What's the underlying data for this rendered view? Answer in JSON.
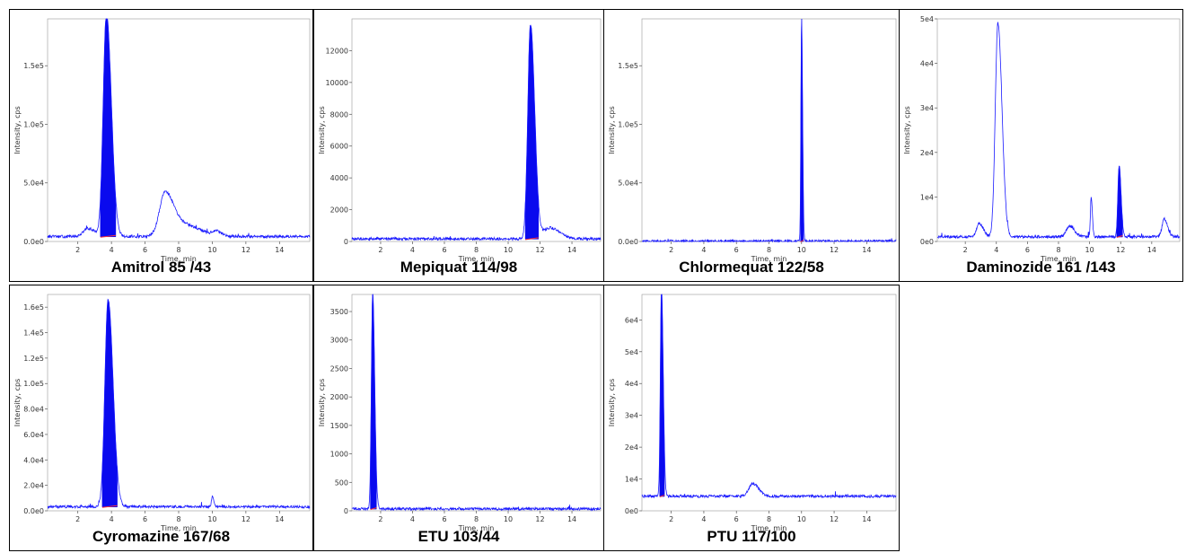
{
  "colors": {
    "trace": "#1a1aff",
    "fill": "#0a0aee",
    "baseline": "#ff3333",
    "frame": "#000000"
  },
  "chart_data": [
    {
      "type": "line",
      "caption": "Amitrol 85 /43",
      "xlabel": "Time, min",
      "ylabel": "Intensity, cps",
      "xlim": [
        0.2,
        15.8
      ],
      "ylim": [
        0,
        190000
      ],
      "xticks": [
        "2",
        "4",
        "6",
        "8",
        "10",
        "12",
        "14"
      ],
      "yticks": [
        {
          "v": 0,
          "label": "0.0e0"
        },
        {
          "v": 50000,
          "label": "5.0e4"
        },
        {
          "v": 100000,
          "label": "1.0e5"
        },
        {
          "v": 150000,
          "label": "1.5e5"
        }
      ],
      "baseline_level": 4000,
      "peaks": [
        {
          "rt": 3.7,
          "height": 190000,
          "width": 0.28,
          "filled": true
        },
        {
          "rt": 7.2,
          "height": 38000,
          "width": 0.5,
          "filled": false
        },
        {
          "rt": 8.5,
          "height": 9000,
          "width": 0.8,
          "filled": false
        },
        {
          "rt": 10.2,
          "height": 4000,
          "width": 0.3,
          "filled": false
        },
        {
          "rt": 2.6,
          "height": 7000,
          "width": 0.4,
          "filled": false
        }
      ]
    },
    {
      "type": "line",
      "caption": "Mepiquat 114/98",
      "xlabel": "Time, min",
      "ylabel": "Intensity, cps",
      "xlim": [
        0.2,
        15.8
      ],
      "ylim": [
        0,
        14000
      ],
      "xticks": [
        "2",
        "4",
        "6",
        "8",
        "10",
        "12",
        "14"
      ],
      "yticks": [
        {
          "v": 0,
          "label": "0"
        },
        {
          "v": 2000,
          "label": "2000"
        },
        {
          "v": 4000,
          "label": "4000"
        },
        {
          "v": 6000,
          "label": "6000"
        },
        {
          "v": 8000,
          "label": "8000"
        },
        {
          "v": 10000,
          "label": "10000"
        },
        {
          "v": 12000,
          "label": "12000"
        }
      ],
      "baseline_level": 150,
      "peaks": [
        {
          "rt": 11.4,
          "height": 13500,
          "width": 0.25,
          "filled": true
        },
        {
          "rt": 12.6,
          "height": 700,
          "width": 0.6,
          "filled": false
        }
      ]
    },
    {
      "type": "line",
      "caption": "Chlormequat 122/58",
      "xlabel": "Time, min",
      "ylabel": "Intensity, cps",
      "xlim": [
        0.2,
        15.8
      ],
      "ylim": [
        0,
        190000
      ],
      "xticks": [
        "2",
        "4",
        "6",
        "8",
        "10",
        "12",
        "14"
      ],
      "yticks": [
        {
          "v": 0,
          "label": "0.0e0"
        },
        {
          "v": 50000,
          "label": "5.0e4"
        },
        {
          "v": 100000,
          "label": "1.0e5"
        },
        {
          "v": 150000,
          "label": "1.5e5"
        }
      ],
      "baseline_level": 0,
      "peaks": [
        {
          "rt": 10.0,
          "height": 190000,
          "width": 0.06,
          "filled": true
        }
      ]
    },
    {
      "type": "line",
      "caption": "Daminozide 161 /143",
      "xlabel": "Time, min",
      "ylabel": "Intensity, cps",
      "xlim": [
        0.2,
        15.8
      ],
      "ylim": [
        0,
        50000
      ],
      "xticks": [
        "2",
        "4",
        "6",
        "8",
        "10",
        "12",
        "14"
      ],
      "yticks": [
        {
          "v": 0,
          "label": "0e0"
        },
        {
          "v": 10000,
          "label": "1e4"
        },
        {
          "v": 20000,
          "label": "2e4"
        },
        {
          "v": 30000,
          "label": "3e4"
        },
        {
          "v": 40000,
          "label": "4e4"
        },
        {
          "v": 50000,
          "label": "5e4"
        }
      ],
      "baseline_level": 1000,
      "peaks": [
        {
          "rt": 4.1,
          "height": 48000,
          "width": 0.25,
          "filled": false
        },
        {
          "rt": 2.9,
          "height": 3000,
          "width": 0.25,
          "filled": false
        },
        {
          "rt": 8.7,
          "height": 2500,
          "width": 0.3,
          "filled": false
        },
        {
          "rt": 10.1,
          "height": 9000,
          "width": 0.07,
          "filled": false
        },
        {
          "rt": 11.9,
          "height": 16000,
          "width": 0.12,
          "filled": true
        },
        {
          "rt": 14.8,
          "height": 4000,
          "width": 0.2,
          "filled": false
        }
      ]
    },
    {
      "type": "line",
      "caption": "Cyromazine 167/68",
      "xlabel": "Time, min",
      "ylabel": "Intensity, cps",
      "xlim": [
        0.2,
        15.8
      ],
      "ylim": [
        0,
        170000
      ],
      "xticks": [
        "2",
        "4",
        "6",
        "8",
        "10",
        "12",
        "14"
      ],
      "yticks": [
        {
          "v": 0,
          "label": "0.0e0"
        },
        {
          "v": 20000,
          "label": "2.0e4"
        },
        {
          "v": 40000,
          "label": "4.0e4"
        },
        {
          "v": 60000,
          "label": "6.0e4"
        },
        {
          "v": 80000,
          "label": "8.0e4"
        },
        {
          "v": 100000,
          "label": "1.0e5"
        },
        {
          "v": 120000,
          "label": "1.2e5"
        },
        {
          "v": 140000,
          "label": "1.4e5"
        },
        {
          "v": 160000,
          "label": "1.6e5"
        }
      ],
      "baseline_level": 3000,
      "peaks": [
        {
          "rt": 3.8,
          "height": 163000,
          "width": 0.28,
          "filled": true
        },
        {
          "rt": 10.0,
          "height": 8000,
          "width": 0.08,
          "filled": false
        }
      ]
    },
    {
      "type": "line",
      "caption": "ETU 103/44",
      "xlabel": "Time, min",
      "ylabel": "Intensity, cps",
      "xlim": [
        0.2,
        15.8
      ],
      "ylim": [
        0,
        3800
      ],
      "xticks": [
        "2",
        "4",
        "6",
        "8",
        "10",
        "12",
        "14"
      ],
      "yticks": [
        {
          "v": 0,
          "label": "0"
        },
        {
          "v": 500,
          "label": "500"
        },
        {
          "v": 1000,
          "label": "1000"
        },
        {
          "v": 1500,
          "label": "1500"
        },
        {
          "v": 2000,
          "label": "2000"
        },
        {
          "v": 2500,
          "label": "2500"
        },
        {
          "v": 3000,
          "label": "3000"
        },
        {
          "v": 3500,
          "label": "3500"
        }
      ],
      "baseline_level": 30,
      "peaks": [
        {
          "rt": 1.5,
          "height": 3800,
          "width": 0.12,
          "filled": true
        }
      ]
    },
    {
      "type": "line",
      "caption": "PTU 117/100",
      "xlabel": "Time, min",
      "ylabel": "Intensity, cps",
      "xlim": [
        0.2,
        15.8
      ],
      "ylim": [
        0,
        68000
      ],
      "xticks": [
        "2",
        "4",
        "6",
        "8",
        "10",
        "12",
        "14"
      ],
      "yticks": [
        {
          "v": 0,
          "label": "0e0"
        },
        {
          "v": 10000,
          "label": "1e4"
        },
        {
          "v": 20000,
          "label": "2e4"
        },
        {
          "v": 30000,
          "label": "3e4"
        },
        {
          "v": 40000,
          "label": "4e4"
        },
        {
          "v": 50000,
          "label": "5e4"
        },
        {
          "v": 60000,
          "label": "6e4"
        }
      ],
      "baseline_level": 4500,
      "peaks": [
        {
          "rt": 1.4,
          "height": 66000,
          "width": 0.1,
          "filled": true
        },
        {
          "rt": 7.0,
          "height": 4000,
          "width": 0.35,
          "filled": false
        }
      ]
    }
  ]
}
